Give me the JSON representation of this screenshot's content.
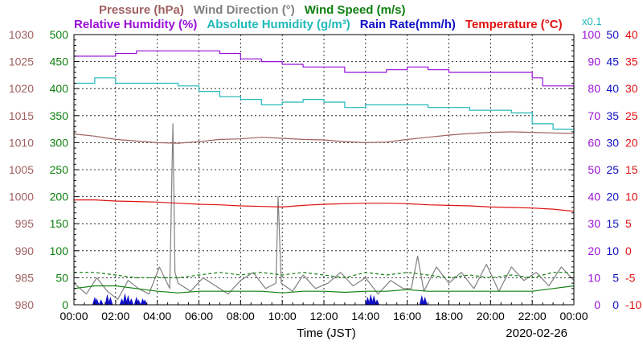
{
  "chart_data": {
    "type": "line",
    "date": "2020-02-26",
    "xlabel": "Time (JST)",
    "x_ticks": [
      "00:00",
      "02:00",
      "04:00",
      "06:00",
      "08:00",
      "10:00",
      "12:00",
      "14:00",
      "16:00",
      "18:00",
      "20:00",
      "22:00",
      "00:00"
    ],
    "x_range_hours": [
      0,
      24
    ],
    "grid": true,
    "legend_row1": [
      {
        "label": "Pressure (hPa)",
        "color": "#a06060"
      },
      {
        "label": "Wind Direction (°)",
        "color": "#808080"
      },
      {
        "label": "Wind Speed (m/s)",
        "color": "#108010"
      }
    ],
    "legend_row2": [
      {
        "label": "Relative Humidity (%)",
        "color": "#9a10d8"
      },
      {
        "label": "Absolute Humidity (g/m³)",
        "color": "#20b8b8"
      },
      {
        "label": "Rain Rate(mm/h)",
        "color": "#1010c8"
      },
      {
        "label": "Temperature (°C)",
        "color": "#e01010"
      }
    ],
    "multiplier_label": "x0.1",
    "axes": {
      "pressure": {
        "ticks": [
          "1030",
          "1025",
          "1020",
          "1015",
          "1010",
          "1005",
          "1000",
          "995",
          "990",
          "985",
          "980"
        ],
        "range": [
          980,
          1030
        ],
        "color": "#a06060"
      },
      "wind_dir_speed": {
        "ticks": [
          "500",
          "450",
          "400",
          "350",
          "300",
          "250",
          "200",
          "150",
          "100",
          "50",
          "0"
        ],
        "range": [
          0,
          500
        ],
        "color": "#108010"
      },
      "humidity": {
        "ticks": [
          "100",
          "90",
          "80",
          "70",
          "60",
          "50",
          "40",
          "30",
          "20",
          "10",
          "0"
        ],
        "range": [
          0,
          100
        ],
        "color": "#9a10d8"
      },
      "rain": {
        "ticks": [
          "50",
          "45",
          "40",
          "35",
          "30",
          "25",
          "20",
          "15",
          "10",
          "5",
          "0"
        ],
        "range": [
          0,
          50
        ],
        "color": "#1010c8"
      },
      "temperature": {
        "ticks": [
          "40",
          "35",
          "30",
          "25",
          "20",
          "15",
          "10",
          "5",
          "0",
          "-5",
          "-10"
        ],
        "range": [
          -10,
          40
        ],
        "color": "#e01010"
      }
    },
    "series": [
      {
        "name": "Pressure (hPa)",
        "color": "#a06060",
        "x": [
          0,
          1,
          2,
          3,
          4,
          5,
          6,
          7,
          8,
          9,
          10,
          11,
          12,
          13,
          14,
          15,
          16,
          17,
          18,
          19,
          20,
          21,
          22,
          23,
          24
        ],
        "y": [
          1011.6,
          1011.2,
          1010.6,
          1010.3,
          1010.0,
          1009.9,
          1010.2,
          1010.6,
          1010.7,
          1011.0,
          1010.8,
          1010.6,
          1010.5,
          1010.2,
          1010.0,
          1010.1,
          1010.6,
          1011.0,
          1011.4,
          1011.7,
          1011.9,
          1012.0,
          1011.9,
          1011.8,
          1011.7
        ]
      },
      {
        "name": "Relative Humidity (%)",
        "color": "#9a10d8",
        "x": [
          0,
          1,
          2,
          3,
          4,
          5,
          6,
          7,
          8,
          9,
          10,
          11,
          12,
          13,
          14,
          15,
          16,
          17,
          18,
          19,
          20,
          21,
          22,
          22.5,
          23,
          24
        ],
        "y": [
          92,
          92,
          93,
          94,
          94,
          94,
          94,
          93,
          91,
          90,
          89,
          88,
          88,
          86,
          86,
          87,
          88,
          87,
          86,
          86,
          86,
          86,
          84,
          81,
          81,
          80.5
        ]
      },
      {
        "name": "Absolute Humidity (g/m³)",
        "color": "#20b8b8",
        "x": [
          0,
          1,
          2,
          3,
          4,
          5,
          6,
          7,
          8,
          9,
          10,
          11,
          12,
          13,
          14,
          15,
          16,
          17,
          18,
          19,
          20,
          21,
          21.5,
          22,
          23,
          24
        ],
        "y": [
          82,
          84,
          82,
          82,
          82,
          81,
          79,
          77,
          76,
          74,
          75,
          76,
          75,
          73,
          74,
          74,
          74,
          73,
          73,
          72,
          72,
          71,
          71,
          67,
          65,
          63.5
        ]
      },
      {
        "name": "Temperature (°C)",
        "color": "#e01010",
        "x": [
          0,
          1,
          2,
          3,
          4,
          5,
          6,
          7,
          8,
          9,
          10,
          11,
          12,
          13,
          14,
          15,
          16,
          17,
          18,
          19,
          20,
          21,
          22,
          23,
          24
        ],
        "y": [
          9.4,
          9.4,
          9.2,
          9.1,
          9.0,
          8.8,
          8.6,
          8.5,
          8.3,
          8.2,
          8.1,
          8.4,
          8.6,
          8.7,
          8.8,
          8.8,
          8.7,
          8.5,
          8.4,
          8.3,
          8.1,
          8.0,
          7.9,
          7.7,
          7.3
        ]
      },
      {
        "name": "Wind Direction (°)",
        "color": "#808080",
        "x": [
          0,
          0.6,
          1.1,
          1.6,
          2.1,
          2.6,
          3.1,
          3.6,
          4.1,
          4.6,
          4.75,
          4.85,
          5.0,
          5.6,
          6.2,
          6.8,
          7.4,
          8.0,
          8.6,
          9.2,
          9.7,
          9.8,
          9.95,
          10.5,
          11.0,
          11.6,
          12.2,
          12.8,
          13.4,
          14.0,
          14.6,
          15.2,
          15.8,
          16.2,
          16.5,
          16.8,
          17.4,
          18.0,
          18.6,
          19.2,
          19.8,
          20.4,
          21.0,
          21.6,
          22.2,
          22.8,
          23.4,
          24
        ],
        "y": [
          40,
          20,
          50,
          25,
          10,
          45,
          30,
          20,
          70,
          30,
          335,
          60,
          40,
          25,
          50,
          35,
          20,
          45,
          60,
          30,
          40,
          200,
          40,
          25,
          55,
          30,
          40,
          60,
          35,
          50,
          20,
          45,
          30,
          30,
          90,
          25,
          70,
          40,
          60,
          30,
          75,
          25,
          70,
          45,
          60,
          35,
          70,
          45
        ]
      },
      {
        "name": "Wind Speed (m/s)",
        "color": "#108010",
        "x": [
          0,
          1,
          2,
          3,
          4,
          5,
          6,
          7,
          8,
          9,
          10,
          11,
          12,
          13,
          14,
          15,
          16,
          17,
          18,
          19,
          20,
          21,
          22,
          23,
          24
        ],
        "y": [
          3,
          3.5,
          3.5,
          3,
          2.5,
          2.2,
          2.5,
          2.5,
          2.5,
          2.5,
          2.2,
          2.5,
          2.5,
          2.3,
          2.5,
          2.5,
          2.8,
          2.5,
          2.5,
          2.5,
          2.5,
          2.5,
          2.5,
          3,
          3.5
        ]
      },
      {
        "name": "Wind Speed gust (m/s)",
        "color": "#108010",
        "dashed": true,
        "x": [
          0,
          1,
          2,
          3,
          4,
          5,
          6,
          7,
          8,
          9,
          10,
          11,
          12,
          13,
          14,
          15,
          16,
          17,
          18,
          19,
          20,
          21,
          22,
          23,
          24
        ],
        "y": [
          6,
          6,
          5.5,
          5,
          5,
          5,
          5.5,
          6,
          5.5,
          6,
          5.5,
          6,
          5.5,
          5,
          6,
          5.5,
          6,
          5.5,
          5,
          5.5,
          5,
          5.5,
          5,
          6,
          6
        ]
      },
      {
        "name": "Rain Rate(mm/h)",
        "color": "#1010c8",
        "type": "bar",
        "x": [
          1.0,
          1.1,
          1.3,
          1.6,
          1.75,
          2.3,
          2.45,
          2.6,
          2.75,
          3.0,
          3.1,
          3.3,
          3.4,
          14.1,
          14.25,
          14.4,
          14.55,
          16.7,
          16.85
        ],
        "y": [
          1.5,
          1.2,
          1.0,
          2.0,
          1.5,
          1.2,
          2.2,
          1.8,
          1.2,
          1.5,
          1.0,
          1.2,
          1.0,
          1.5,
          2.0,
          1.8,
          1.0,
          1.8,
          1.5
        ]
      }
    ]
  }
}
